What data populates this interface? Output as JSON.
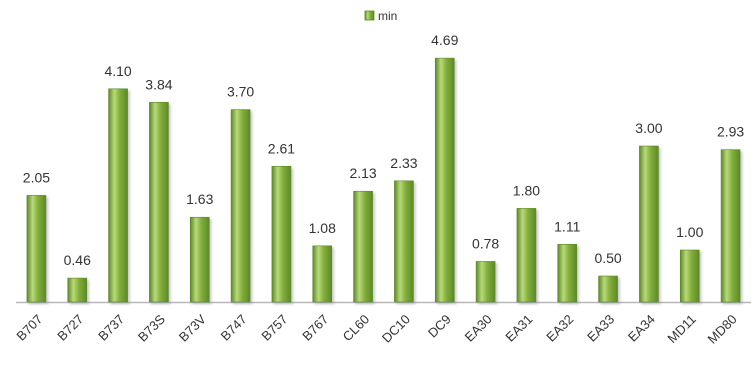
{
  "chart_data": {
    "type": "bar",
    "legend": {
      "position": "top-center",
      "entries": [
        "min"
      ]
    },
    "categories": [
      "B707",
      "B727",
      "B737",
      "B73S",
      "B73V",
      "B747",
      "B757",
      "B767",
      "CL60",
      "DC10",
      "DC9",
      "EA30",
      "EA31",
      "EA32",
      "EA33",
      "EA34",
      "MD11",
      "MD80"
    ],
    "series": [
      {
        "name": "min",
        "values": [
          2.05,
          0.46,
          4.1,
          3.84,
          1.63,
          3.7,
          2.61,
          1.08,
          2.13,
          2.33,
          4.69,
          0.78,
          1.8,
          1.11,
          0.5,
          3.0,
          1.0,
          2.93
        ],
        "color": "#7aa634"
      }
    ],
    "data_labels": [
      "2.05",
      "0.46",
      "4.10",
      "3.84",
      "1.63",
      "3.70",
      "2.61",
      "1.08",
      "2.13",
      "2.33",
      "4.69",
      "0.78",
      "1.80",
      "1.11",
      "0.50",
      "3.00",
      "1.00",
      "2.93"
    ],
    "xlabel": "",
    "ylabel": "",
    "title": "",
    "ylim": [
      0,
      5
    ],
    "grid": false,
    "colors": {
      "bar_light": "#b9d97a",
      "bar_mid": "#82af3c",
      "bar_dark": "#5d8927",
      "axis": "#b8b8b8",
      "text": "#333333"
    }
  }
}
